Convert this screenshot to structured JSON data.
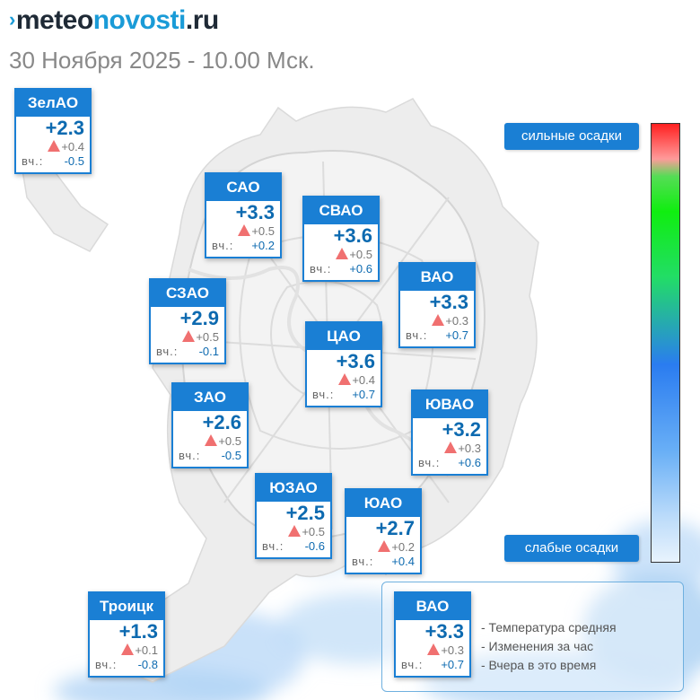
{
  "header": {
    "logo_mark": "›",
    "logo_part1": "meteo",
    "logo_part2": "novosti",
    "logo_part3": ".ru",
    "subtitle": "30 Ноября 2025 - 10.00 Мск."
  },
  "yesterday_label": "вч.:",
  "districts": [
    {
      "name": "ЗелАО",
      "temp": "+2.3",
      "change": "+0.4",
      "yesterday": "-0.5"
    },
    {
      "name": "САО",
      "temp": "+3.3",
      "change": "+0.5",
      "yesterday": "+0.2"
    },
    {
      "name": "СВАО",
      "temp": "+3.6",
      "change": "+0.5",
      "yesterday": "+0.6"
    },
    {
      "name": "ВАО",
      "temp": "+3.3",
      "change": "+0.3",
      "yesterday": "+0.7"
    },
    {
      "name": "СЗАО",
      "temp": "+2.9",
      "change": "+0.5",
      "yesterday": "-0.1"
    },
    {
      "name": "ЦАО",
      "temp": "+3.6",
      "change": "+0.4",
      "yesterday": "+0.7"
    },
    {
      "name": "ЗАО",
      "temp": "+2.6",
      "change": "+0.5",
      "yesterday": "-0.5"
    },
    {
      "name": "ЮВАО",
      "temp": "+3.2",
      "change": "+0.3",
      "yesterday": "+0.6"
    },
    {
      "name": "ЮЗАО",
      "temp": "+2.5",
      "change": "+0.5",
      "yesterday": "-0.6"
    },
    {
      "name": "ЮАО",
      "temp": "+2.7",
      "change": "+0.2",
      "yesterday": "+0.4"
    },
    {
      "name": "Троицк",
      "temp": "+1.3",
      "change": "+0.1",
      "yesterday": "-0.8"
    }
  ],
  "scale": {
    "top_label": "сильные осадки",
    "bottom_label": "слабые осадки"
  },
  "legend": {
    "sample": {
      "name": "ВАО",
      "temp": "+3.3",
      "change": "+0.3",
      "yesterday": "+0.7"
    },
    "lines": [
      "- Температура средняя",
      "- Изменения за час",
      "- Вчера в это время"
    ]
  },
  "colors": {
    "accent": "#1a7fd4",
    "temperature_text": "#0d6ab0",
    "rise_triangle": "#f07070",
    "logo_blue": "#1a9bd7"
  },
  "icons": {
    "change_indicator": "triangle-up-icon"
  }
}
